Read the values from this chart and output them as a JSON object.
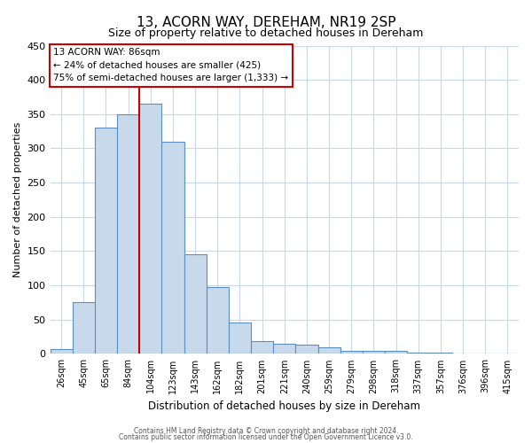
{
  "title": "13, ACORN WAY, DEREHAM, NR19 2SP",
  "subtitle": "Size of property relative to detached houses in Dereham",
  "xlabel": "Distribution of detached houses by size in Dereham",
  "ylabel": "Number of detached properties",
  "bar_labels": [
    "26sqm",
    "45sqm",
    "65sqm",
    "84sqm",
    "104sqm",
    "123sqm",
    "143sqm",
    "162sqm",
    "182sqm",
    "201sqm",
    "221sqm",
    "240sqm",
    "259sqm",
    "279sqm",
    "298sqm",
    "318sqm",
    "337sqm",
    "357sqm",
    "376sqm",
    "396sqm",
    "415sqm"
  ],
  "bar_values": [
    7,
    75,
    330,
    350,
    365,
    310,
    145,
    97,
    46,
    19,
    15,
    13,
    10,
    5,
    5,
    4,
    2,
    2,
    1,
    0,
    1
  ],
  "bar_color": "#c9d9ec",
  "bar_edge_color": "#5a8fc0",
  "ylim": [
    0,
    450
  ],
  "yticks": [
    0,
    50,
    100,
    150,
    200,
    250,
    300,
    350,
    400,
    450
  ],
  "annotation_title": "13 ACORN WAY: 86sqm",
  "annotation_line1": "← 24% of detached houses are smaller (425)",
  "annotation_line2": "75% of semi-detached houses are larger (1,333) →",
  "annotation_box_color": "#ffffff",
  "annotation_box_edge": "#cc0000",
  "red_line_color": "#cc0000",
  "footer1": "Contains HM Land Registry data © Crown copyright and database right 2024.",
  "footer2": "Contains public sector information licensed under the Open Government Licence v3.0.",
  "background_color": "#ffffff",
  "grid_color": "#c8d8ea",
  "property_line_x": 3.5
}
